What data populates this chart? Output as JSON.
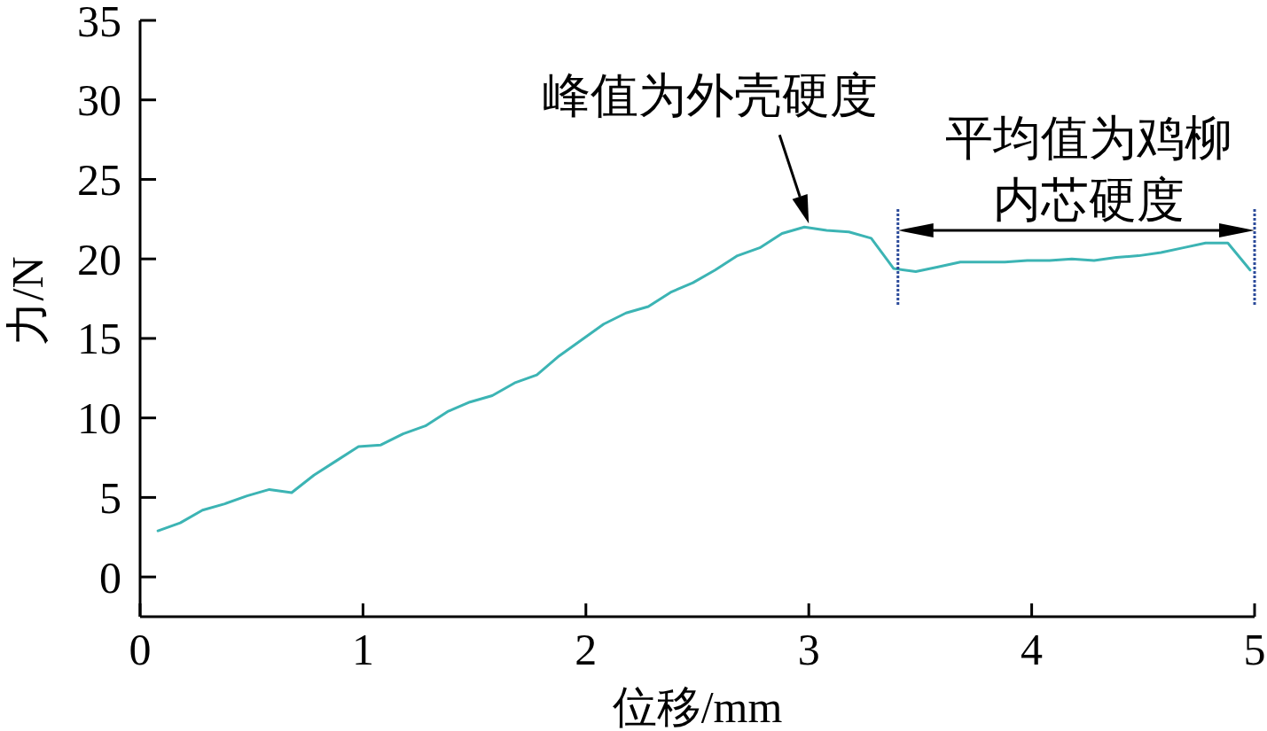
{
  "chart_data": {
    "type": "line",
    "xlabel": "位移/mm",
    "ylabel": "力/N",
    "x": [
      0.08,
      0.18,
      0.28,
      0.38,
      0.48,
      0.58,
      0.68,
      0.78,
      0.88,
      0.98,
      1.08,
      1.18,
      1.28,
      1.38,
      1.48,
      1.58,
      1.68,
      1.78,
      1.88,
      1.98,
      2.08,
      2.18,
      2.28,
      2.38,
      2.48,
      2.58,
      2.68,
      2.78,
      2.88,
      2.98,
      3.08,
      3.18,
      3.28,
      3.38,
      3.48,
      3.58,
      3.68,
      3.78,
      3.88,
      3.98,
      4.08,
      4.18,
      4.28,
      4.38,
      4.48,
      4.58,
      4.68,
      4.78,
      4.88,
      4.98
    ],
    "values": [
      2.9,
      3.4,
      4.2,
      4.6,
      5.1,
      5.5,
      5.3,
      6.4,
      7.3,
      8.2,
      8.3,
      9.0,
      9.5,
      10.4,
      11.0,
      11.4,
      12.2,
      12.7,
      13.9,
      14.9,
      15.9,
      16.6,
      17.0,
      17.9,
      18.5,
      19.3,
      20.2,
      20.7,
      21.6,
      22.0,
      21.8,
      21.7,
      21.3,
      19.4,
      19.2,
      19.5,
      19.8,
      19.8,
      19.8,
      19.9,
      19.9,
      20.0,
      19.9,
      20.1,
      20.2,
      20.4,
      20.7,
      21.0,
      21.0,
      19.3
    ],
    "color": "#3cb4b4",
    "line_style": "solid",
    "xlim": [
      0,
      5
    ],
    "xticks": [
      0,
      1,
      2,
      3,
      4,
      5
    ],
    "ylim": [
      -2.5,
      35
    ],
    "yticks": [
      0,
      5,
      10,
      15,
      20,
      25,
      30,
      35
    ],
    "ref_lines": [
      {
        "axis": "x",
        "value": 3.4,
        "color": "#2b4a9a",
        "line_style": "dotted"
      },
      {
        "axis": "x",
        "value": 5,
        "color": "#2b4a9a",
        "line_style": "dotted"
      }
    ],
    "annotations": [
      {
        "text": "峰值为外壳硬度",
        "x": 3,
        "y": 22
      },
      "平均值为鸡柳内芯硬度"
    ]
  }
}
